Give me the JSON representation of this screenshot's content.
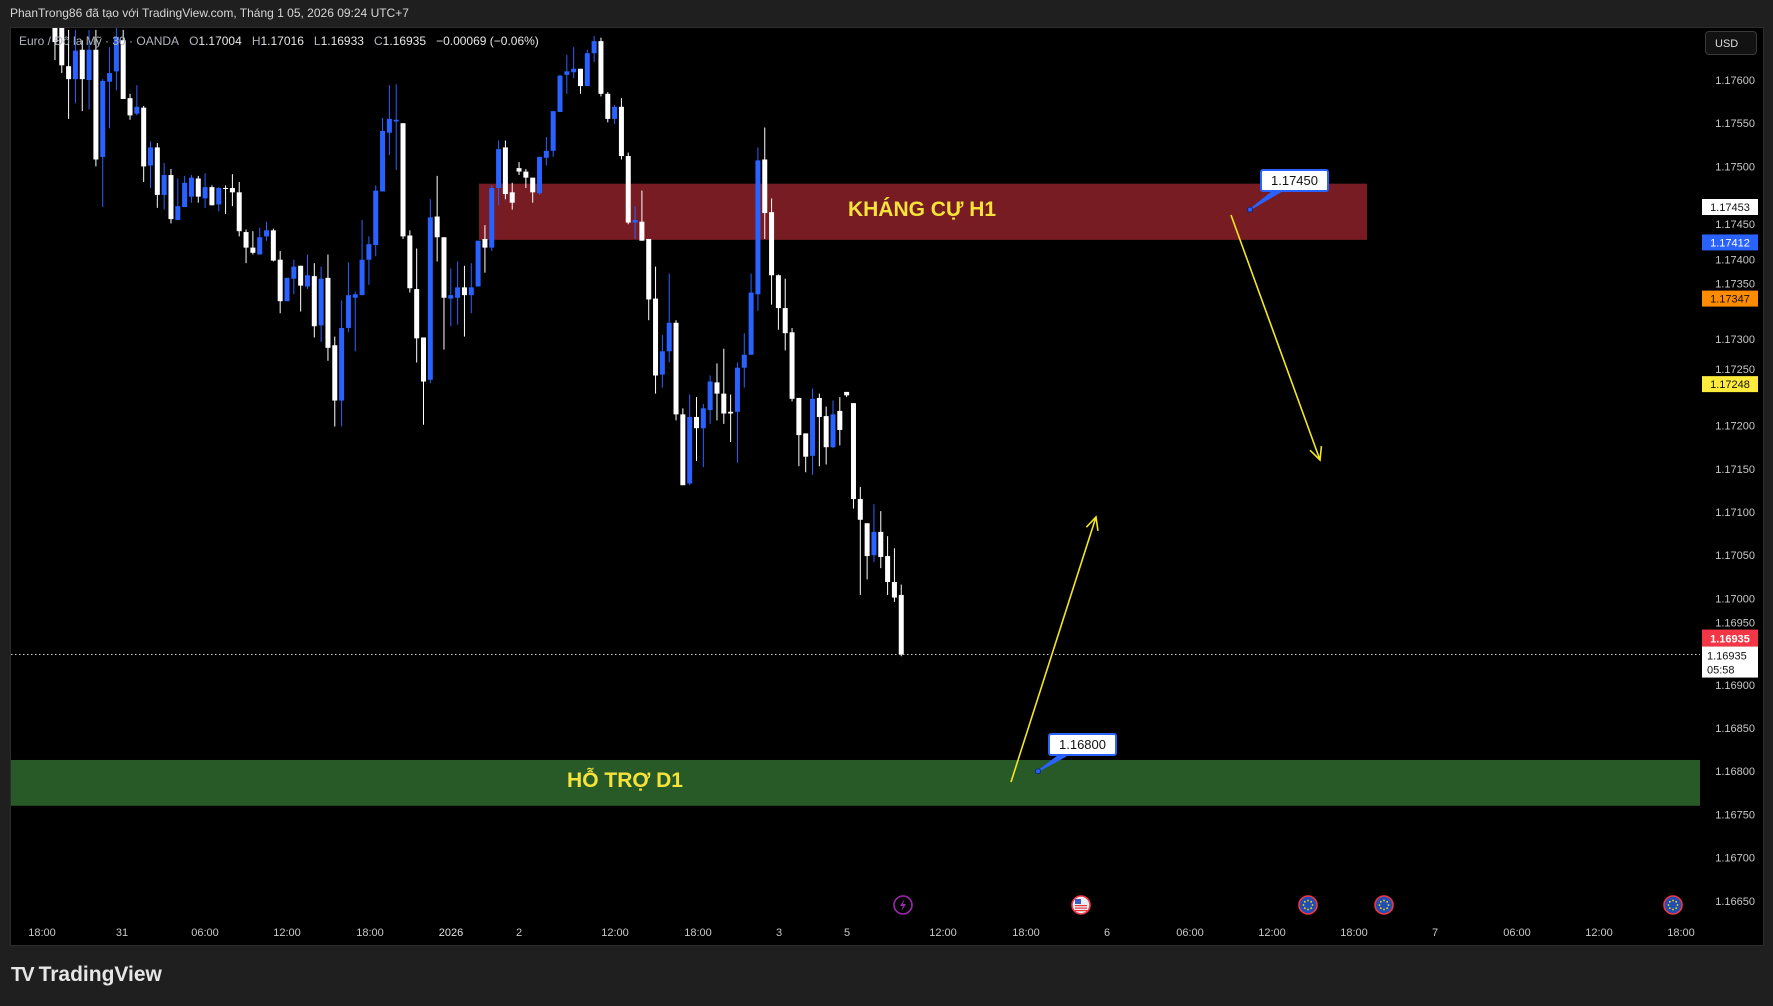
{
  "header": {
    "text": "PhanTrong86 đã tạo với TradingView.com, Tháng 1 05, 2026 09:24 UTC+7"
  },
  "legend": {
    "symbol": "Euro / Đô la Mỹ · 30 · OANDA",
    "o_label": "O",
    "o": "1.17004",
    "h_label": "H",
    "h": "1.17016",
    "l_label": "L",
    "l": "1.16933",
    "c_label": "C",
    "c": "1.16935",
    "change": "−0.00069 (−0.06%)"
  },
  "currency_button": "USD",
  "zones": {
    "resistance": {
      "label": "KHÁNG CỰ H1",
      "color": "#781c24",
      "top": 1.1748,
      "bottom": 1.17415
    },
    "support": {
      "label": "HỖ TRỢ D1",
      "color": "#285a28",
      "top": 1.16813,
      "bottom": 1.1676
    }
  },
  "callouts": [
    {
      "text": "1.17450",
      "price": 1.1745
    },
    {
      "text": "1.16800",
      "price": 1.168
    }
  ],
  "price_tags": [
    {
      "text": "1.17453",
      "price": 1.17453,
      "bg": "#ffffff",
      "fg": "#111111"
    },
    {
      "text": "1.17412",
      "price": 1.17412,
      "bg": "#2962ff",
      "fg": "#ffffff"
    },
    {
      "text": "1.17347",
      "price": 1.17347,
      "bg": "#ff8c00",
      "fg": "#111111"
    },
    {
      "text": "1.17248",
      "price": 1.17248,
      "bg": "#ffeb3b",
      "fg": "#111111"
    }
  ],
  "last_price": {
    "text": "1.16935",
    "price": 1.16935,
    "countdown": "05:58",
    "color": "#f23645"
  },
  "events": [
    {
      "icon": "lightning-icon",
      "color": "#9c27b0"
    },
    {
      "icon": "us-flag-icon",
      "color": "#f23645"
    },
    {
      "icon": "eu-flag-icon",
      "color": "#f23645"
    },
    {
      "icon": "eu-flag-icon",
      "color": "#f23645"
    },
    {
      "icon": "eu-flag-icon",
      "color": "#f23645"
    }
  ],
  "footer": {
    "logo_mark": "TV",
    "brand": "TradingView"
  },
  "chart_data": {
    "type": "candlestick",
    "title": "Euro / Đô la Mỹ · 30 · OANDA",
    "up_color": "#2962ff",
    "down_color": "#ffffff",
    "ylim": [
      1.16597,
      1.17661
    ],
    "y_ticks": [
      "1.17600",
      "1.17550",
      "1.17500",
      "1.17450",
      "1.17400",
      "1.17350",
      "1.17300",
      "1.17250",
      "1.17200",
      "1.17150",
      "1.17100",
      "1.17050",
      "1.17000",
      "1.16950",
      "1.16900",
      "1.16850",
      "1.16800",
      "1.16750",
      "1.16700",
      "1.16650"
    ],
    "x_ticks": [
      "18:00",
      "31",
      "06:00",
      "12:00",
      "18:00",
      "2026",
      "2",
      "12:00",
      "18:00",
      "3",
      "5",
      "12:00",
      "18:00",
      "6",
      "06:00",
      "12:00",
      "18:00",
      "7",
      "06:00",
      "12:00",
      "18:00"
    ],
    "grid": false,
    "ohlc": [
      [
        1.177,
        1.1773,
        1.17668,
        1.1769
      ],
      [
        1.1769,
        1.1772,
        1.1767,
        1.1771
      ],
      [
        1.1771,
        1.17735,
        1.1768,
        1.17695
      ],
      [
        1.17695,
        1.17715,
        1.17672,
        1.17705
      ],
      [
        1.17705,
        1.17725,
        1.1768,
        1.1769
      ],
      [
        1.1769,
        1.177,
        1.17662,
        1.17672
      ],
      [
        1.1767,
        1.17675,
        1.17623,
        1.17644
      ],
      [
        1.17664,
        1.1767,
        1.17608,
        1.17617
      ],
      [
        1.17616,
        1.17658,
        1.17555,
        1.17601
      ],
      [
        1.17601,
        1.17658,
        1.17573,
        1.17634
      ],
      [
        1.17635,
        1.17646,
        1.17564,
        1.17601
      ],
      [
        1.176,
        1.17658,
        1.17566,
        1.17635
      ],
      [
        1.17635,
        1.17658,
        1.175,
        1.17508
      ],
      [
        1.17511,
        1.17601,
        1.17453,
        1.17599
      ],
      [
        1.17598,
        1.17638,
        1.17544,
        1.17608
      ],
      [
        1.1761,
        1.1767,
        1.17588,
        1.1765
      ],
      [
        1.17646,
        1.17658,
        1.17578,
        1.17578
      ],
      [
        1.17579,
        1.17584,
        1.17554,
        1.17559
      ],
      [
        1.17561,
        1.17594,
        1.17559,
        1.17569
      ],
      [
        1.17568,
        1.1757,
        1.17482,
        1.175
      ],
      [
        1.17501,
        1.17529,
        1.17475,
        1.17522
      ],
      [
        1.17522,
        1.17527,
        1.17452,
        1.17467
      ],
      [
        1.17467,
        1.17504,
        1.1745,
        1.1749
      ],
      [
        1.1749,
        1.17497,
        1.17434,
        1.17439
      ],
      [
        1.17438,
        1.17486,
        1.17438,
        1.17454
      ],
      [
        1.17453,
        1.17489,
        1.17453,
        1.17481
      ],
      [
        1.17465,
        1.1749,
        1.17458,
        1.17487
      ],
      [
        1.17486,
        1.17489,
        1.17458,
        1.17465
      ],
      [
        1.17463,
        1.17492,
        1.17452,
        1.17476
      ],
      [
        1.17476,
        1.17478,
        1.17455,
        1.17455
      ],
      [
        1.17456,
        1.17476,
        1.17448,
        1.17475
      ],
      [
        1.17475,
        1.17478,
        1.17445,
        1.17474
      ],
      [
        1.17475,
        1.17491,
        1.17454,
        1.1747
      ],
      [
        1.1747,
        1.17482,
        1.17419,
        1.17425
      ],
      [
        1.17424,
        1.17427,
        1.17388,
        1.17406
      ],
      [
        1.17406,
        1.17425,
        1.17398,
        1.174
      ],
      [
        1.17398,
        1.17429,
        1.17398,
        1.17418
      ],
      [
        1.17419,
        1.17436,
        1.17414,
        1.17426
      ],
      [
        1.17426,
        1.17428,
        1.1739,
        1.17391
      ],
      [
        1.17392,
        1.17402,
        1.1733,
        1.17344
      ],
      [
        1.17344,
        1.17371,
        1.17344,
        1.17371
      ],
      [
        1.1737,
        1.17392,
        1.17352,
        1.17384
      ],
      [
        1.17385,
        1.17385,
        1.17332,
        1.17362
      ],
      [
        1.17361,
        1.17398,
        1.17358,
        1.17374
      ],
      [
        1.17373,
        1.17388,
        1.17302,
        1.17315
      ],
      [
        1.17316,
        1.17384,
        1.17297,
        1.1737
      ],
      [
        1.17371,
        1.17398,
        1.17275,
        1.1729
      ],
      [
        1.17293,
        1.17303,
        1.17199,
        1.17229
      ],
      [
        1.17229,
        1.17345,
        1.17199,
        1.17313
      ],
      [
        1.17313,
        1.17389,
        1.17308,
        1.17351
      ],
      [
        1.17348,
        1.17355,
        1.17286,
        1.17352
      ],
      [
        1.17351,
        1.17438,
        1.17351,
        1.17392
      ],
      [
        1.17392,
        1.17419,
        1.17363,
        1.1741
      ],
      [
        1.17409,
        1.17478,
        1.17396,
        1.17472
      ],
      [
        1.17471,
        1.17556,
        1.17471,
        1.17541
      ],
      [
        1.17539,
        1.17594,
        1.17513,
        1.17555
      ],
      [
        1.17552,
        1.17595,
        1.17496,
        1.17554
      ],
      [
        1.1755,
        1.1755,
        1.17416,
        1.17419
      ],
      [
        1.1742,
        1.17426,
        1.17354,
        1.17359
      ],
      [
        1.17358,
        1.17405,
        1.17273,
        1.17301
      ],
      [
        1.17302,
        1.17302,
        1.17201,
        1.17251
      ],
      [
        1.17253,
        1.17462,
        1.17249,
        1.17441
      ],
      [
        1.17442,
        1.17489,
        1.1739,
        1.17418
      ],
      [
        1.17418,
        1.17418,
        1.17288,
        1.17348
      ],
      [
        1.17347,
        1.17382,
        1.17315,
        1.17351
      ],
      [
        1.17348,
        1.1739,
        1.17317,
        1.1736
      ],
      [
        1.1736,
        1.17385,
        1.17303,
        1.17351
      ],
      [
        1.17351,
        1.17388,
        1.1733,
        1.1736
      ],
      [
        1.17361,
        1.17414,
        1.17361,
        1.17414
      ],
      [
        1.17416,
        1.17432,
        1.17377,
        1.17406
      ],
      [
        1.17406,
        1.17478,
        1.17402,
        1.17475
      ],
      [
        1.17475,
        1.1753,
        1.17455,
        1.1752
      ],
      [
        1.17522,
        1.1753,
        1.17462,
        1.17468
      ],
      [
        1.1747,
        1.17481,
        1.1745,
        1.17458
      ],
      [
        1.17498,
        1.17505,
        1.1749,
        1.17494
      ],
      [
        1.17494,
        1.17497,
        1.17475,
        1.17487
      ],
      [
        1.17487,
        1.17487,
        1.17458,
        1.1747
      ],
      [
        1.17469,
        1.17511,
        1.17467,
        1.17511
      ],
      [
        1.1751,
        1.17534,
        1.17501,
        1.17518
      ],
      [
        1.17518,
        1.17564,
        1.17511,
        1.17564
      ],
      [
        1.17563,
        1.17606,
        1.17563,
        1.17605
      ],
      [
        1.17606,
        1.17629,
        1.17584,
        1.1761
      ],
      [
        1.17609,
        1.17638,
        1.17602,
        1.17613
      ],
      [
        1.17613,
        1.17613,
        1.17584,
        1.17593
      ],
      [
        1.17593,
        1.17635,
        1.17593,
        1.17631
      ],
      [
        1.17631,
        1.17651,
        1.17621,
        1.17645
      ],
      [
        1.17645,
        1.17649,
        1.17581,
        1.17584
      ],
      [
        1.17584,
        1.17586,
        1.17551,
        1.17555
      ],
      [
        1.17555,
        1.17571,
        1.17549,
        1.17569
      ],
      [
        1.17569,
        1.17579,
        1.17508,
        1.17512
      ],
      [
        1.17512,
        1.17516,
        1.17433,
        1.17435
      ],
      [
        1.17435,
        1.17454,
        1.17416,
        1.17438
      ],
      [
        1.17436,
        1.17472,
        1.17414,
        1.17414
      ],
      [
        1.17416,
        1.17416,
        1.17322,
        1.17346
      ],
      [
        1.17347,
        1.17384,
        1.17237,
        1.17258
      ],
      [
        1.17259,
        1.17305,
        1.17244,
        1.17286
      ],
      [
        1.17286,
        1.17376,
        1.17273,
        1.17319
      ],
      [
        1.17319,
        1.17322,
        1.17206,
        1.17213
      ],
      [
        1.17213,
        1.1722,
        1.17131,
        1.17131
      ],
      [
        1.17133,
        1.17236,
        1.17131,
        1.1721
      ],
      [
        1.1721,
        1.17233,
        1.17159,
        1.17197
      ],
      [
        1.17197,
        1.17225,
        1.17152,
        1.1722
      ],
      [
        1.17218,
        1.17258,
        1.17202,
        1.17251
      ],
      [
        1.1725,
        1.17272,
        1.17206,
        1.17237
      ],
      [
        1.17237,
        1.17289,
        1.17202,
        1.17214
      ],
      [
        1.17216,
        1.17236,
        1.17181,
        1.17214
      ],
      [
        1.17216,
        1.17273,
        1.17157,
        1.17267
      ],
      [
        1.17267,
        1.17307,
        1.17244,
        1.17282
      ],
      [
        1.17282,
        1.17376,
        1.17282,
        1.17354
      ],
      [
        1.17352,
        1.17522,
        1.17333,
        1.17507
      ],
      [
        1.17508,
        1.17545,
        1.17416,
        1.17446
      ],
      [
        1.17447,
        1.17463,
        1.1734,
        1.17374
      ],
      [
        1.17374,
        1.17375,
        1.17311,
        1.17336
      ],
      [
        1.17336,
        1.1737,
        1.17287,
        1.17307
      ],
      [
        1.17308,
        1.17313,
        1.17228,
        1.17231
      ],
      [
        1.17232,
        1.17232,
        1.17153,
        1.17189
      ],
      [
        1.17191,
        1.17191,
        1.17146,
        1.17164
      ],
      [
        1.17165,
        1.17243,
        1.17143,
        1.17231
      ],
      [
        1.17232,
        1.17237,
        1.17153,
        1.1721
      ],
      [
        1.17211,
        1.17222,
        1.17155,
        1.17175
      ],
      [
        1.17175,
        1.17229,
        1.17174,
        1.17213
      ],
      [
        1.17217,
        1.17233,
        1.17177,
        1.17195
      ],
      [
        1.17239,
        1.17239,
        1.17233,
        1.17235
      ],
      [
        1.17226,
        1.17226,
        1.17104,
        1.17115
      ],
      [
        1.17115,
        1.17129,
        1.17004,
        1.17091
      ],
      [
        1.17087,
        1.17087,
        1.17022,
        1.17049
      ],
      [
        1.1705,
        1.17109,
        1.17042,
        1.17077
      ],
      [
        1.17077,
        1.17101,
        1.17035,
        1.17048
      ],
      [
        1.17049,
        1.17072,
        1.17004,
        1.17019
      ],
      [
        1.17019,
        1.17058,
        1.16996,
        1.17001
      ],
      [
        1.17004,
        1.17016,
        1.16933,
        1.16935
      ]
    ]
  }
}
